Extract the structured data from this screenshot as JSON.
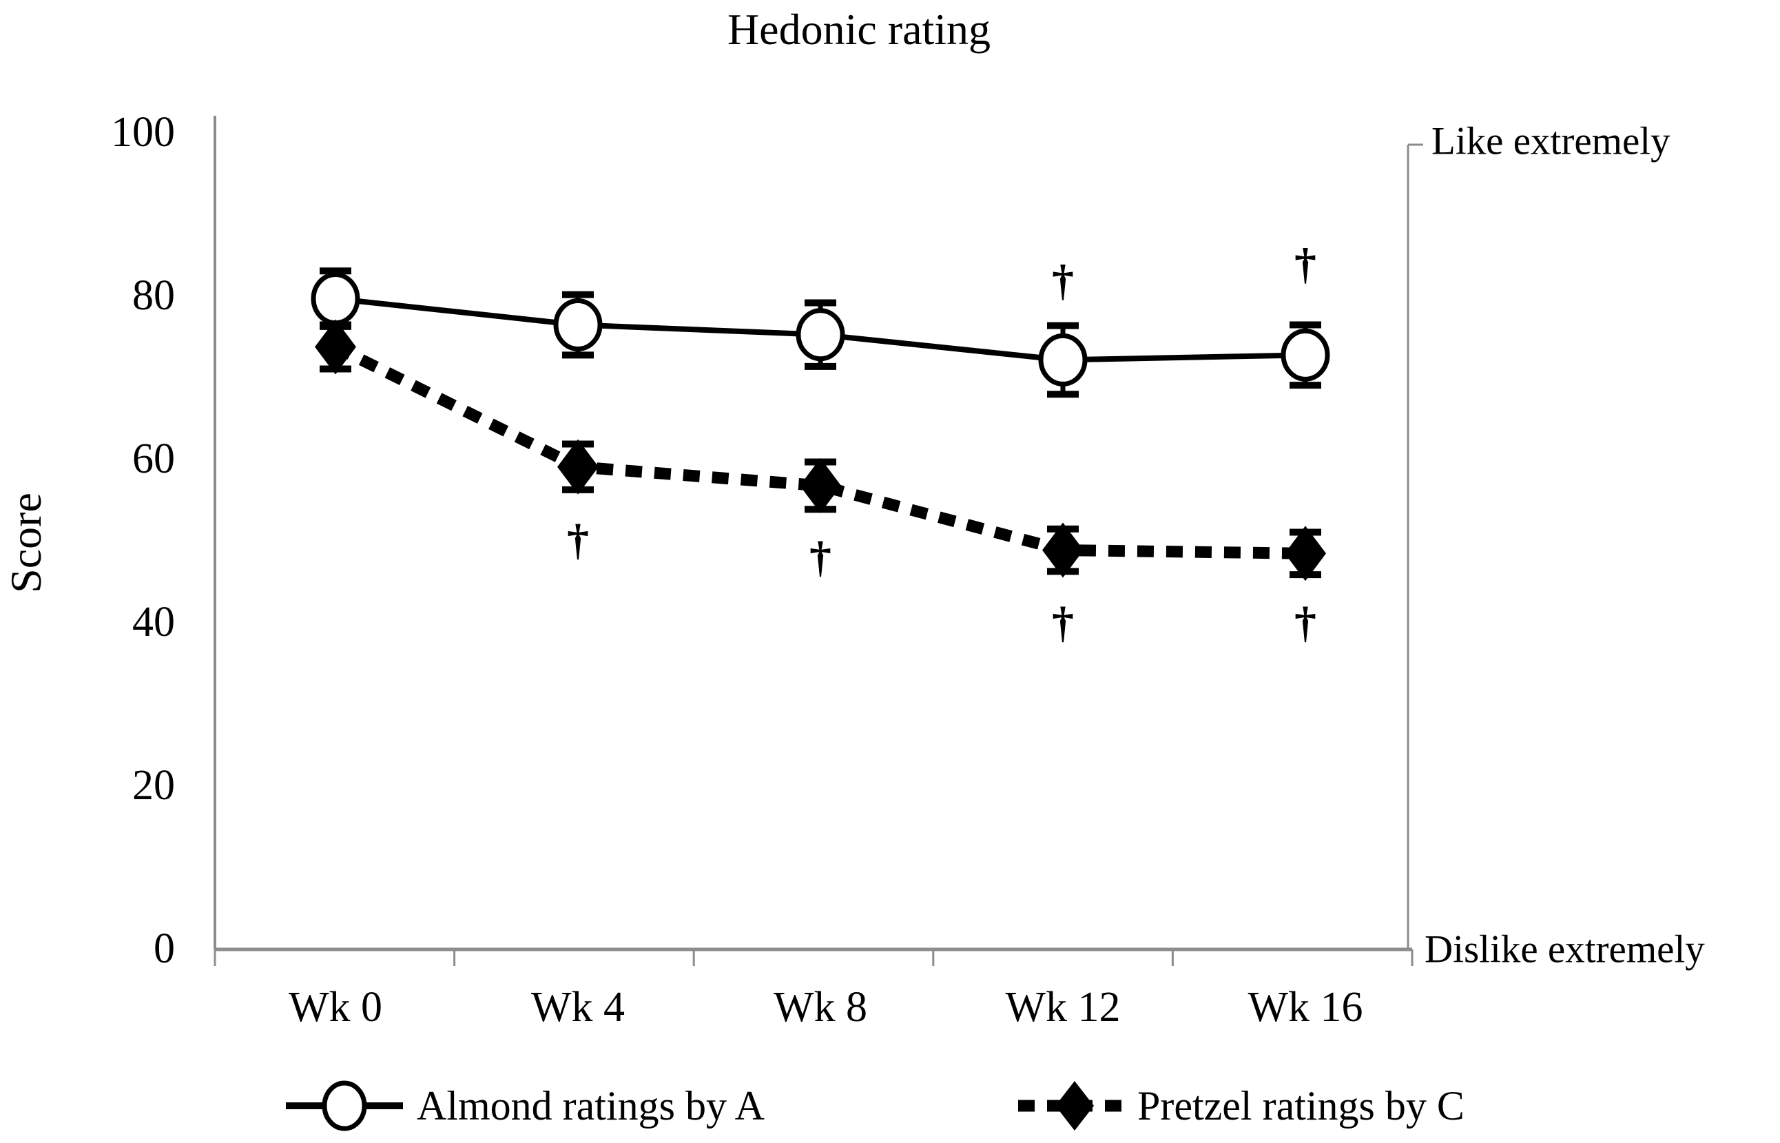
{
  "title": "Hedonic rating",
  "y_axis": {
    "label": "Score",
    "tick_labels": [
      "0",
      "20",
      "40",
      "60",
      "80",
      "100"
    ],
    "min": 0,
    "max": 100
  },
  "x_axis": {
    "categories": [
      "Wk 0",
      "Wk 4",
      "Wk 8",
      "Wk 12",
      "Wk 16"
    ]
  },
  "right_axis": {
    "top_label": "Like extremely",
    "bottom_label": "Dislike extremely"
  },
  "legend": [
    {
      "label": "Almond ratings by A",
      "marker": "open-circle-icon",
      "line_style": "solid"
    },
    {
      "label": "Pretzel ratings by C",
      "marker": "filled-diamond-icon",
      "line_style": "dashed"
    }
  ],
  "colors": {
    "series": "#000000",
    "axis": "#8c8c8c",
    "background": "#ffffff",
    "text": "#000000"
  },
  "chart_data": {
    "type": "line",
    "title": "Hedonic rating",
    "xlabel": "",
    "ylabel": "Score",
    "ylim": [
      0,
      100
    ],
    "y_ticks": [
      0,
      20,
      40,
      60,
      80,
      100
    ],
    "grid": false,
    "legend_position": "bottom",
    "categories": [
      "Wk 0",
      "Wk 4",
      "Wk 8",
      "Wk 12",
      "Wk 16"
    ],
    "series": [
      {
        "name": "Almond ratings by A",
        "marker": "open-circle",
        "line": "solid",
        "values": [
          79.7,
          76.5,
          75.3,
          72.2,
          72.8
        ],
        "error_bars": [
          3.4,
          3.7,
          3.9,
          4.2,
          3.7
        ],
        "significance_daggers": [
          {
            "category": "Wk 12",
            "symbol": "†",
            "placement": "above",
            "y": 82.0
          },
          {
            "category": "Wk 16",
            "symbol": "†",
            "placement": "above",
            "y": 84.0
          }
        ]
      },
      {
        "name": "Pretzel ratings by C",
        "marker": "filled-diamond",
        "line": "dashed",
        "values": [
          73.8,
          59.1,
          56.8,
          48.9,
          48.5
        ],
        "error_bars": [
          2.7,
          2.8,
          2.9,
          2.6,
          2.6
        ],
        "significance_daggers": [
          {
            "category": "Wk 4",
            "symbol": "†",
            "placement": "below",
            "y": 50.2
          },
          {
            "category": "Wk 8",
            "symbol": "†",
            "placement": "below",
            "y": 48.1
          },
          {
            "category": "Wk 12",
            "symbol": "†",
            "placement": "below",
            "y": 40.1
          },
          {
            "category": "Wk 16",
            "symbol": "†",
            "placement": "below",
            "y": 40.1
          }
        ]
      }
    ],
    "right_axis_labels": {
      "top": "Like extremely",
      "bottom": "Dislike extremely"
    }
  }
}
